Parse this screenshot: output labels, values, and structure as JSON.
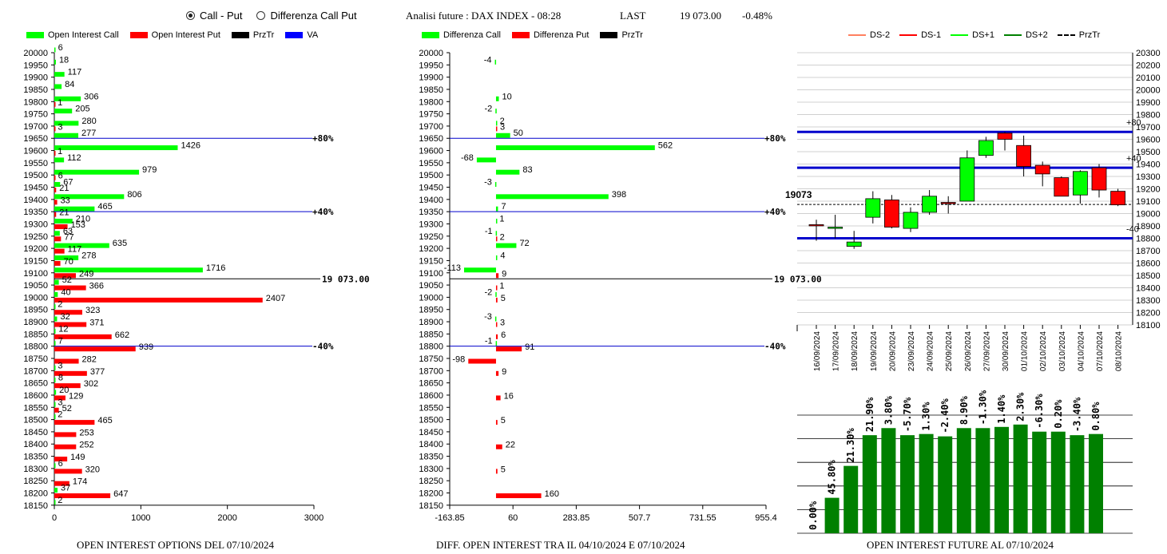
{
  "controls": {
    "options": [
      {
        "label": "Call - Put",
        "selected": true
      },
      {
        "label": "Differenza Call Put",
        "selected": false
      }
    ]
  },
  "header": {
    "title": "Analisi future : DAX INDEX - 08:28",
    "last_label": "LAST",
    "last_value": "19 073.00",
    "change": "-0.48%"
  },
  "colors": {
    "green": "#00ff00",
    "red": "#ff0000",
    "dark_green": "#008000",
    "blue": "#0000cc"
  },
  "left_chart": {
    "legend": [
      {
        "label": "Open Interest Call",
        "color": "#00ff00"
      },
      {
        "label": "Open Interest Put",
        "color": "#ff0000"
      },
      {
        "label": "PrzTr",
        "color": "#000000"
      },
      {
        "label": "VA",
        "color": "#0000ff"
      }
    ],
    "footer": "OPEN INTEREST OPTIONS DEL 07/10/2024"
  },
  "mid_chart": {
    "legend": [
      {
        "label": "Differenza Call",
        "color": "#00ff00"
      },
      {
        "label": "Differenza Put",
        "color": "#ff0000"
      },
      {
        "label": "PrzTr",
        "color": "#000000"
      }
    ],
    "footer": "DIFF. OPEN INTEREST TRA IL 04/10/2024 E 07/10/2024"
  },
  "right_chart": {
    "legend": [
      {
        "label": "DS-2",
        "color": "#ff8060",
        "style": "line"
      },
      {
        "label": "DS-1",
        "color": "#ff0000",
        "style": "line"
      },
      {
        "label": "DS+1",
        "color": "#00ff00",
        "style": "line"
      },
      {
        "label": "DS+2",
        "color": "#008000",
        "style": "line"
      },
      {
        "label": "PrzTr",
        "color": "#000000",
        "style": "dash"
      }
    ],
    "footer": "OPEN INTEREST FUTURE AL 07/10/2024"
  },
  "chart_data": [
    {
      "type": "bar",
      "orientation": "horizontal",
      "categories": [
        "20000",
        "19950",
        "19900",
        "19850",
        "19800",
        "19750",
        "19700",
        "19650",
        "19600",
        "19550",
        "19500",
        "19450",
        "19400",
        "19350",
        "19300",
        "19250",
        "19200",
        "19150",
        "19100",
        "19050",
        "19000",
        "18950",
        "18900",
        "18850",
        "18800",
        "18750",
        "18700",
        "18650",
        "18600",
        "18550",
        "18500",
        "18450",
        "18400",
        "18350",
        "18300",
        "18250",
        "18200",
        "18150"
      ],
      "series": [
        {
          "name": "Open Interest Call",
          "values": [
            6,
            18,
            117,
            84,
            306,
            205,
            280,
            277,
            1426,
            112,
            979,
            67,
            806,
            465,
            210,
            63,
            635,
            278,
            1716,
            52,
            40,
            2,
            32,
            12,
            7,
            0,
            3,
            8,
            20,
            3,
            2,
            0,
            0,
            0,
            6,
            0,
            37,
            2
          ]
        },
        {
          "name": "Open Interest Put",
          "values": [
            0,
            0,
            0,
            0,
            1,
            0,
            3,
            0,
            1,
            0,
            6,
            21,
            33,
            21,
            153,
            77,
            117,
            70,
            249,
            366,
            2407,
            323,
            371,
            662,
            939,
            282,
            377,
            302,
            129,
            52,
            465,
            253,
            252,
            149,
            320,
            174,
            647,
            0
          ]
        }
      ],
      "xlim": [
        0,
        3000
      ],
      "xticks": [
        "0",
        "1000",
        "2000",
        "3000"
      ],
      "lines": [
        {
          "level": "19650",
          "label": "+80%"
        },
        {
          "level": "19350",
          "label": "+40%"
        },
        {
          "level": "19100",
          "label": "19 073.00"
        },
        {
          "level": "18800",
          "label": "-40%"
        }
      ]
    },
    {
      "type": "bar",
      "orientation": "horizontal",
      "categories": [
        "20000",
        "19950",
        "19900",
        "19850",
        "19800",
        "19750",
        "19700",
        "19650",
        "19600",
        "19550",
        "19500",
        "19450",
        "19400",
        "19350",
        "19300",
        "19250",
        "19200",
        "19150",
        "19100",
        "19050",
        "19000",
        "18950",
        "18900",
        "18850",
        "18800",
        "18750",
        "18700",
        "18650",
        "18600",
        "18550",
        "18500",
        "18450",
        "18400",
        "18350",
        "18300",
        "18250",
        "18200",
        "18150"
      ],
      "series": [
        {
          "name": "Differenza Call",
          "values": [
            0,
            -4,
            0,
            0,
            10,
            -2,
            2,
            50,
            562,
            -68,
            83,
            -3,
            398,
            7,
            1,
            -1,
            72,
            4,
            -113,
            0,
            -2,
            0,
            -3,
            0,
            -1,
            0,
            0,
            0,
            0,
            0,
            0,
            0,
            0,
            0,
            0,
            0,
            0,
            0
          ]
        },
        {
          "name": "Differenza Put",
          "values": [
            0,
            0,
            0,
            0,
            0,
            0,
            3,
            0,
            0,
            0,
            0,
            0,
            0,
            0,
            0,
            2,
            0,
            0,
            9,
            1,
            5,
            0,
            3,
            6,
            91,
            -98,
            9,
            0,
            16,
            0,
            5,
            0,
            22,
            0,
            5,
            0,
            160,
            0
          ]
        }
      ],
      "xlim": [
        -163.85,
        955.4
      ],
      "xticks": [
        "-163.85",
        "60",
        "283.85",
        "507.7",
        "731.55",
        "955.4"
      ],
      "lines": [
        {
          "level": "19650",
          "label": "+80%"
        },
        {
          "level": "19350",
          "label": "+40%"
        },
        {
          "level": "19100",
          "label": "19 073.00"
        },
        {
          "level": "18800",
          "label": "-40%"
        }
      ]
    },
    {
      "type": "candlestick",
      "categories": [
        "16/09/2024",
        "17/09/2024",
        "18/09/2024",
        "19/09/2024",
        "20/09/2024",
        "23/09/2024",
        "24/09/2024",
        "25/09/2024",
        "26/09/2024",
        "27/09/2024",
        "30/09/2024",
        "01/10/2024",
        "02/10/2024",
        "03/10/2024",
        "04/10/2024",
        "07/10/2024",
        "08/10/2024"
      ],
      "ohlc": [
        [
          18910,
          18950,
          18780,
          18905
        ],
        [
          18880,
          18990,
          18800,
          18890
        ],
        [
          18735,
          18860,
          18715,
          18770
        ],
        [
          18970,
          19180,
          18920,
          19120
        ],
        [
          19110,
          19150,
          18880,
          18890
        ],
        [
          18880,
          19050,
          18850,
          19010
        ],
        [
          19010,
          19190,
          18990,
          19140
        ],
        [
          19090,
          19140,
          19000,
          19080
        ],
        [
          19100,
          19510,
          19100,
          19450
        ],
        [
          19470,
          19620,
          19450,
          19590
        ],
        [
          19650,
          19660,
          19510,
          19600
        ],
        [
          19550,
          19630,
          19300,
          19380
        ],
        [
          19390,
          19420,
          19220,
          19320
        ],
        [
          19290,
          19300,
          19140,
          19140
        ],
        [
          19150,
          19350,
          19080,
          19340
        ],
        [
          19370,
          19400,
          19130,
          19190
        ],
        [
          19180,
          19200,
          19060,
          19070
        ]
      ],
      "ylim": [
        18100,
        20300
      ],
      "yticks": [
        "20300",
        "20200",
        "20100",
        "20000",
        "19900",
        "19800",
        "19700",
        "19600",
        "19500",
        "19400",
        "19300",
        "19200",
        "19100",
        "19000",
        "18900",
        "18800",
        "18700",
        "18600",
        "18500",
        "18400",
        "18300",
        "18200",
        "18100"
      ],
      "price_label": "19073",
      "price": 19073,
      "levels": [
        {
          "value": 19660,
          "label": "+80"
        },
        {
          "value": 19370,
          "label": "+40"
        },
        {
          "value": 18800,
          "label": "-40"
        }
      ]
    },
    {
      "type": "bar",
      "categories": [
        "16/09/2024",
        "17/09/2024",
        "18/09/2024",
        "19/09/2024",
        "20/09/2024",
        "23/09/2024",
        "24/09/2024",
        "25/09/2024",
        "26/09/2024",
        "27/09/2024",
        "30/09/2024",
        "01/10/2024",
        "02/10/2024",
        "03/10/2024",
        "04/10/2024",
        "07/10/2024"
      ],
      "values": [
        0,
        30,
        57,
        83,
        89,
        83,
        84,
        82,
        89,
        89,
        90,
        92,
        86,
        86,
        83,
        84
      ],
      "labels": [
        "0.00%",
        "45.80%",
        "21.30%",
        "21.90%",
        "3.80%",
        "-5.70%",
        "1.30%",
        "-2.40%",
        "8.90%",
        "-1.30%",
        "1.40%",
        "2.30%",
        "-6.30%",
        "0.20%",
        "-3.40%",
        "0.80%"
      ],
      "ylim": [
        0,
        100
      ],
      "grid": true
    }
  ]
}
